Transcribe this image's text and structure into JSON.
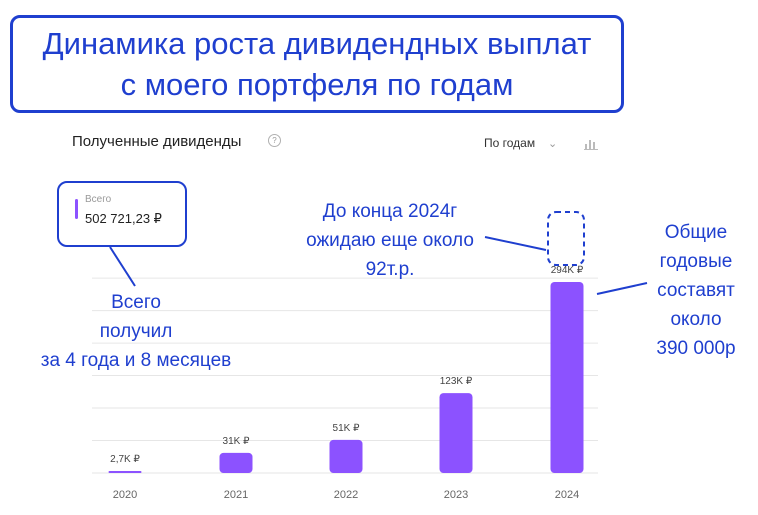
{
  "title": {
    "line1": "Динамика роста дивидендных выплат",
    "line2": "с моего портфеля по годам"
  },
  "widget": {
    "title": "Полученные дивиденды",
    "info_glyph": "?",
    "period_label": "По годам",
    "total_label": "Всего",
    "total_value": "502 721,23 ₽"
  },
  "annotations": {
    "received": [
      "Всего",
      "получил",
      "за 4 года и 8 месяцев"
    ],
    "expected": [
      "До конца 2024г",
      "ожидаю еще около",
      "92т.р."
    ],
    "yearly_total": [
      "Общие",
      "годовые",
      "составят",
      "около",
      "390 000р"
    ]
  },
  "colors": {
    "bar": "#8c52ff",
    "annotation": "#1f3fcf",
    "grid": "#e6e6e6"
  },
  "chart_data": {
    "type": "bar",
    "categories": [
      "2020",
      "2021",
      "2022",
      "2023",
      "2024"
    ],
    "values": [
      2.7,
      31,
      51,
      123,
      294
    ],
    "data_labels": [
      "2,7K ₽",
      "31K ₽",
      "51K ₽",
      "123K ₽",
      "294K ₽"
    ],
    "unit": "тыс. ₽",
    "projected": {
      "category": "2024",
      "additional": 92
    },
    "ylim": [
      0,
      300
    ],
    "grid": true,
    "legend": "none"
  }
}
